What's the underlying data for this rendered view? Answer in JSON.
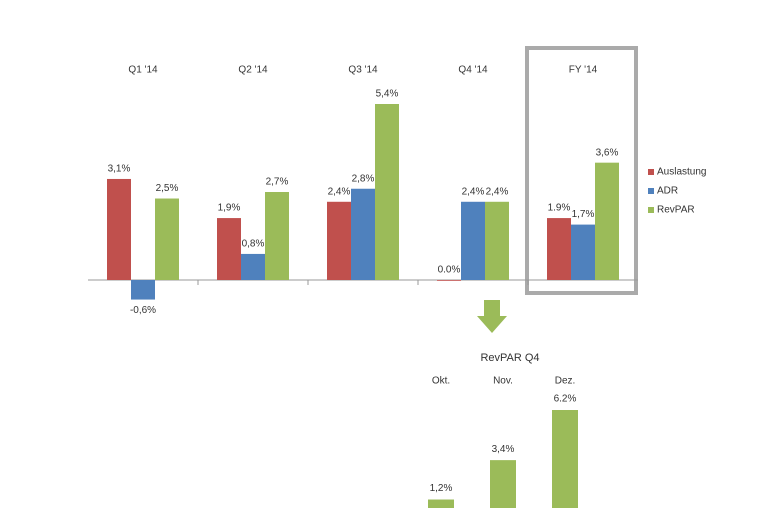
{
  "chart_data": [
    {
      "type": "bar",
      "categories": [
        "Q1 '14",
        "Q2 '14",
        "Q3 '14",
        "Q4 '14",
        "FY '14"
      ],
      "series": [
        {
          "name": "Auslastung",
          "color": "#c0504d",
          "values": [
            3.1,
            1.9,
            2.4,
            0.0,
            1.9
          ],
          "value_labels": [
            "3,1%",
            "1,9%",
            "2,4%",
            "0.0%",
            "1.9%"
          ]
        },
        {
          "name": "ADR",
          "color": "#4f81bd",
          "values": [
            -0.6,
            0.8,
            2.8,
            2.4,
            1.7
          ],
          "value_labels": [
            "-0,6%",
            "0,8%",
            "2,8%",
            "2,4%",
            "1,7%"
          ]
        },
        {
          "name": "RevPAR",
          "color": "#9bbb59",
          "values": [
            2.5,
            2.7,
            5.4,
            2.4,
            3.6
          ],
          "value_labels": [
            "2,5%",
            "2,7%",
            "5,4%",
            "2,4%",
            "3,6%"
          ]
        }
      ],
      "legend": "right"
    },
    {
      "type": "bar",
      "title": "RevPAR Q4",
      "categories": [
        "Okt.",
        "Nov.",
        "Dez."
      ],
      "values": [
        1.2,
        3.4,
        6.2
      ],
      "value_labels": [
        "1,2%",
        "3,4%",
        "6.2%"
      ],
      "color": "#9bbb59"
    }
  ]
}
